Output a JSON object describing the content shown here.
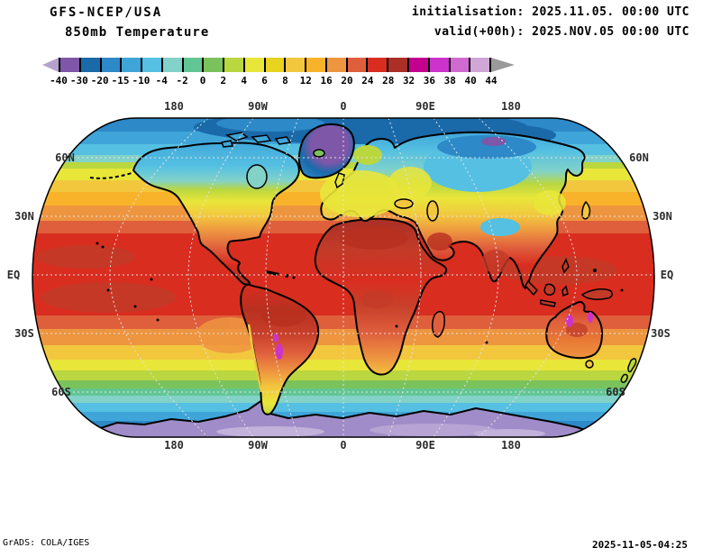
{
  "header": {
    "model": "GFS-NCEP/USA",
    "field": "850mb Temperature",
    "init_label": "initialisation: 2025.11.05. 00:00 UTC",
    "valid_label": "valid(+00h): 2025.NOV.05 00:00 UTC"
  },
  "colorbar": {
    "tick_labels": [
      "-40",
      "-30",
      "-20",
      "-15",
      "-10",
      "-4",
      "-2",
      "0",
      "2",
      "4",
      "6",
      "8",
      "12",
      "16",
      "20",
      "24",
      "28",
      "32",
      "36",
      "38",
      "40",
      "44"
    ],
    "segment_colors": [
      "#7e57a8",
      "#1a6aaa",
      "#2d89c8",
      "#3fa5d9",
      "#55c0e2",
      "#82d2c8",
      "#62c694",
      "#7ac35c",
      "#bad740",
      "#e9e63a",
      "#e8d31f",
      "#f2c73e",
      "#f9b32a",
      "#ee9540",
      "#df5f3d",
      "#d92d20",
      "#ab2f26",
      "#c4008f",
      "#cc33cc",
      "#d06ad0",
      "#d0a6d6"
    ],
    "left_arrow_color": "#b3a3cc",
    "right_arrow_color": "#9a9a9a"
  },
  "map": {
    "lon_labels_top": [
      "180",
      "90W",
      "0",
      "90E",
      "180"
    ],
    "lon_labels_bottom": [
      "180",
      "90W",
      "0",
      "90E",
      "180"
    ],
    "lat_labels_left": [
      "60N",
      "30N",
      "EQ",
      "30S",
      "60S"
    ],
    "lat_labels_right": [
      "60N",
      "30N",
      "EQ",
      "30S",
      "60S"
    ]
  },
  "footer": {
    "credit": "GrADS: COLA/IGES",
    "timestamp": "2025-11-05-04:25"
  },
  "chart_data": {
    "type": "heatmap",
    "title": "850mb Temperature",
    "model_run": "GFS-NCEP/USA 2025.11.05 00:00 UTC, valid +00h",
    "projection": "robinson-world",
    "levels": [
      -40,
      -30,
      -20,
      -15,
      -10,
      -4,
      -2,
      0,
      2,
      4,
      6,
      8,
      12,
      16,
      20,
      24,
      28,
      32,
      36,
      38,
      40,
      44
    ],
    "palette": [
      "#7e57a8",
      "#1a6aaa",
      "#2d89c8",
      "#3fa5d9",
      "#55c0e2",
      "#82d2c8",
      "#62c694",
      "#7ac35c",
      "#bad740",
      "#e9e63a",
      "#e8d31f",
      "#f2c73e",
      "#f9b32a",
      "#ee9540",
      "#df5f3d",
      "#d92d20",
      "#ab2f26",
      "#c4008f",
      "#cc33cc",
      "#d06ad0",
      "#d0a6d6"
    ],
    "lat_ticks": [
      "60N",
      "30N",
      "EQ",
      "30S",
      "60S"
    ],
    "lon_ticks": [
      "180",
      "90W",
      "0",
      "90E",
      "180"
    ],
    "approx_zonal_temps": [
      {
        "lat": "Arctic 80N",
        "t": -18
      },
      {
        "lat": "60N",
        "t": 2
      },
      {
        "lat": "45N ocean",
        "t": 10
      },
      {
        "lat": "30N",
        "t": 20
      },
      {
        "lat": "EQ",
        "t": 26
      },
      {
        "lat": "30S",
        "t": 16
      },
      {
        "lat": "50S",
        "t": 4
      },
      {
        "lat": "60S",
        "t": -6
      },
      {
        "lat": "Antarctica",
        "t": -35
      }
    ],
    "notable_features": [
      "cold blue/purple Arctic and Siberia",
      "purple cold core over Greenland",
      "cyan cold patch over Tibet",
      "magenta >36 hot spots over interior Australia and NW Argentina",
      "purple/lavender Antarctica"
    ]
  }
}
